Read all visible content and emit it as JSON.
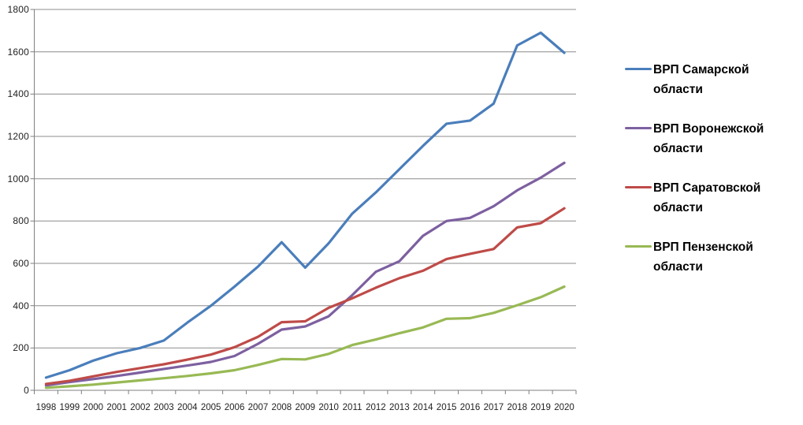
{
  "chart_data": {
    "type": "line",
    "title": "",
    "xlabel": "",
    "ylabel": "",
    "categories": [
      "1998",
      "1999",
      "2000",
      "2001",
      "2002",
      "2003",
      "2004",
      "2005",
      "2006",
      "2007",
      "2008",
      "2009",
      "2010",
      "2011",
      "2012",
      "2013",
      "2014",
      "2015",
      "2016",
      "2017",
      "2018",
      "2019",
      "2020"
    ],
    "series": [
      {
        "name": "ВРП Самарской области",
        "color": "#4A7EBB",
        "values": [
          60,
          95,
          140,
          175,
          200,
          235,
          320,
          400,
          490,
          585,
          700,
          580,
          695,
          835,
          935,
          1045,
          1155,
          1260,
          1275,
          1355,
          1630,
          1690,
          1595
        ]
      },
      {
        "name": "ВРП Воронежской области",
        "color": "#7D60A0",
        "values": [
          23,
          39,
          53,
          68,
          84,
          101,
          117,
          134,
          162,
          220,
          287,
          302,
          350,
          450,
          560,
          610,
          730,
          800,
          815,
          870,
          945,
          1005,
          1075
        ]
      },
      {
        "name": "ВРП Саратовской области",
        "color": "#BE4B48",
        "values": [
          30,
          45,
          66,
          87,
          105,
          123,
          145,
          169,
          204,
          253,
          322,
          326,
          390,
          435,
          485,
          530,
          565,
          620,
          645,
          668,
          770,
          790,
          860
        ]
      },
      {
        "name": "ВРП Пензенской области",
        "color": "#98B954",
        "values": [
          12,
          19,
          27,
          37,
          47,
          57,
          68,
          80,
          95,
          120,
          148,
          146,
          172,
          214,
          240,
          270,
          297,
          338,
          341,
          366,
          402,
          440,
          490
        ]
      }
    ],
    "ylim": [
      0,
      1800
    ],
    "ytick_step": 200,
    "grid": true,
    "legend_position": "right",
    "grid_color": "#8C8C8C",
    "axis_color": "#7F7F7F"
  }
}
